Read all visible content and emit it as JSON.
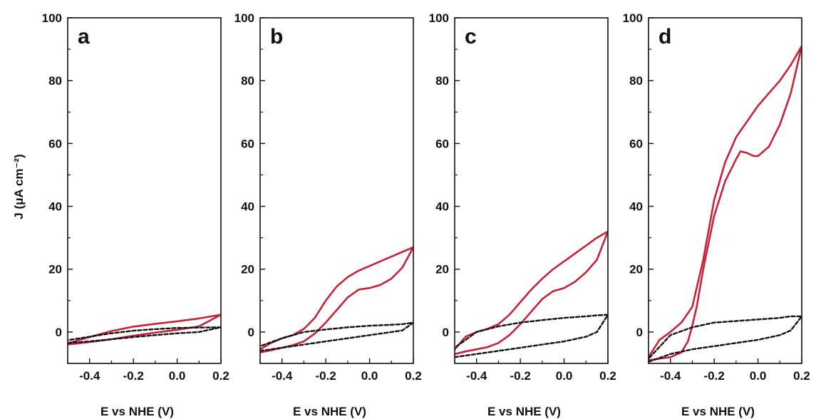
{
  "y_axis_title": "J (μA cm⁻²)",
  "chart_data": [
    {
      "type": "line",
      "panel_label": "a",
      "xlabel": "E vs NHE (V)",
      "xlim": [
        -0.5,
        0.2
      ],
      "ylim": [
        -10,
        100
      ],
      "xticks": [
        "-0.4",
        "-0.2",
        "0.0",
        "0.2"
      ],
      "yticks": [
        "0",
        "20",
        "40",
        "60",
        "80",
        "100"
      ],
      "grid": false,
      "series": [
        {
          "style": "solid",
          "color": "#c8223a",
          "x": [
            -0.5,
            -0.4,
            -0.3,
            -0.2,
            -0.1,
            0.0,
            0.1,
            0.2,
            0.1,
            0.0,
            -0.1,
            -0.2,
            -0.3,
            -0.4,
            -0.5
          ],
          "y": [
            -4,
            -3.2,
            -2.3,
            -1.2,
            -0.2,
            0.7,
            1.8,
            5.5,
            4.3,
            3.4,
            2.6,
            1.7,
            0.3,
            -1.6,
            -3.6
          ]
        },
        {
          "style": "dashed",
          "color": "#111111",
          "x": [
            -0.5,
            -0.4,
            -0.3,
            -0.2,
            -0.1,
            0.0,
            0.1,
            0.2,
            0.1,
            0.0,
            -0.1,
            -0.2,
            -0.3,
            -0.4,
            -0.5
          ],
          "y": [
            -3.5,
            -3,
            -2.3,
            -1.6,
            -1,
            -0.4,
            0,
            1.5,
            1.4,
            1.3,
            0.9,
            0.4,
            -0.4,
            -1.5,
            -2.6
          ]
        }
      ]
    },
    {
      "type": "line",
      "panel_label": "b",
      "xlabel": "E vs NHE (V)",
      "xlim": [
        -0.5,
        0.2
      ],
      "ylim": [
        -10,
        100
      ],
      "xticks": [
        "-0.4",
        "-0.2",
        "0.0",
        "0.2"
      ],
      "yticks": [
        "0",
        "20",
        "40",
        "60",
        "80",
        "100"
      ],
      "grid": false,
      "series": [
        {
          "style": "solid",
          "color": "#c8223a",
          "x": [
            -0.5,
            -0.45,
            -0.4,
            -0.35,
            -0.3,
            -0.25,
            -0.2,
            -0.15,
            -0.1,
            -0.05,
            0.0,
            0.05,
            0.1,
            0.15,
            0.2,
            0.15,
            0.1,
            0.05,
            0.0,
            -0.05,
            -0.1,
            -0.15,
            -0.2,
            -0.25,
            -0.3,
            -0.35,
            -0.4,
            -0.45,
            -0.5
          ],
          "y": [
            -6.5,
            -5.8,
            -5,
            -4.2,
            -3,
            -0.5,
            3,
            7,
            11,
            13.5,
            14,
            15,
            17,
            20.5,
            27,
            25.5,
            24,
            22.5,
            21,
            19.5,
            17.5,
            14.5,
            10,
            4.5,
            1,
            -1,
            -2,
            -3.5,
            -5.5
          ]
        },
        {
          "style": "dashed",
          "color": "#111111",
          "x": [
            -0.5,
            -0.4,
            -0.3,
            -0.2,
            -0.1,
            0.0,
            0.1,
            0.15,
            0.2,
            0.15,
            0.1,
            0.0,
            -0.1,
            -0.2,
            -0.3,
            -0.4,
            -0.5
          ],
          "y": [
            -6,
            -5,
            -4,
            -3,
            -2,
            -1,
            0,
            0.5,
            3,
            2.5,
            2.3,
            2,
            1.5,
            0.8,
            0,
            -2,
            -4.5
          ]
        }
      ]
    },
    {
      "type": "line",
      "panel_label": "c",
      "xlabel": "E vs NHE (V)",
      "xlim": [
        -0.5,
        0.2
      ],
      "ylim": [
        -10,
        100
      ],
      "xticks": [
        "-0.4",
        "-0.2",
        "0.0",
        "0.2"
      ],
      "yticks": [
        "0",
        "20",
        "40",
        "60",
        "80",
        "100"
      ],
      "grid": false,
      "series": [
        {
          "style": "solid",
          "color": "#c8223a",
          "x": [
            -0.5,
            -0.45,
            -0.4,
            -0.35,
            -0.3,
            -0.25,
            -0.2,
            -0.15,
            -0.1,
            -0.05,
            0.0,
            0.05,
            0.1,
            0.15,
            0.2,
            0.15,
            0.1,
            0.05,
            0.0,
            -0.05,
            -0.1,
            -0.15,
            -0.2,
            -0.25,
            -0.3,
            -0.35,
            -0.4,
            -0.45,
            -0.5
          ],
          "y": [
            -7,
            -6.2,
            -5.5,
            -4.8,
            -3.5,
            -1,
            2.5,
            6.5,
            10.5,
            13,
            14,
            16,
            19,
            23,
            32,
            30,
            27.5,
            25,
            22.5,
            20,
            17,
            13.5,
            9.5,
            5.5,
            2.5,
            1,
            0,
            -1.5,
            -5.5
          ]
        },
        {
          "style": "dashed",
          "color": "#111111",
          "x": [
            -0.5,
            -0.4,
            -0.3,
            -0.2,
            -0.1,
            0.0,
            0.1,
            0.15,
            0.2,
            0.15,
            0.1,
            0.0,
            -0.1,
            -0.2,
            -0.3,
            -0.4,
            -0.5
          ],
          "y": [
            -8,
            -7,
            -6,
            -5,
            -4,
            -3,
            -1.5,
            0,
            5.5,
            5.3,
            5,
            4.5,
            3.8,
            3,
            1.8,
            0,
            -5
          ]
        }
      ]
    },
    {
      "type": "line",
      "panel_label": "d",
      "xlabel": "E vs NHE (V)",
      "xlim": [
        -0.5,
        0.2
      ],
      "ylim": [
        -10,
        100
      ],
      "xticks": [
        "-0.4",
        "-0.2",
        "0.0",
        "0.2"
      ],
      "yticks": [
        "0",
        "20",
        "40",
        "60",
        "80",
        "100"
      ],
      "grid": false,
      "series": [
        {
          "style": "solid",
          "color": "#c8223a",
          "x": [
            -0.5,
            -0.45,
            -0.4,
            -0.35,
            -0.32,
            -0.3,
            -0.28,
            -0.25,
            -0.2,
            -0.15,
            -0.1,
            -0.08,
            -0.05,
            -0.02,
            0.0,
            0.05,
            0.1,
            0.15,
            0.2,
            0.15,
            0.1,
            0.05,
            0.0,
            -0.05,
            -0.1,
            -0.15,
            -0.2,
            -0.25,
            -0.3,
            -0.35,
            -0.4,
            -0.45,
            -0.5
          ],
          "y": [
            -9,
            -8.5,
            -8,
            -6.5,
            -3,
            2,
            8,
            20,
            37,
            48,
            55,
            57.5,
            57,
            56,
            56,
            59,
            66,
            76,
            91,
            85,
            80,
            76,
            72,
            67,
            62,
            54,
            42,
            23,
            8,
            3,
            0,
            -2.5,
            -8
          ]
        },
        {
          "style": "dashed",
          "color": "#111111",
          "x": [
            -0.5,
            -0.4,
            -0.3,
            -0.2,
            -0.1,
            0.0,
            0.1,
            0.15,
            0.2,
            0.15,
            0.1,
            0.0,
            -0.1,
            -0.2,
            -0.3,
            -0.4,
            -0.5
          ],
          "y": [
            -9.5,
            -7,
            -5.5,
            -4.5,
            -3.5,
            -2.5,
            -1,
            0.5,
            5,
            5,
            4.5,
            4,
            3.5,
            3,
            1.5,
            -1,
            -8.5
          ]
        }
      ]
    }
  ]
}
